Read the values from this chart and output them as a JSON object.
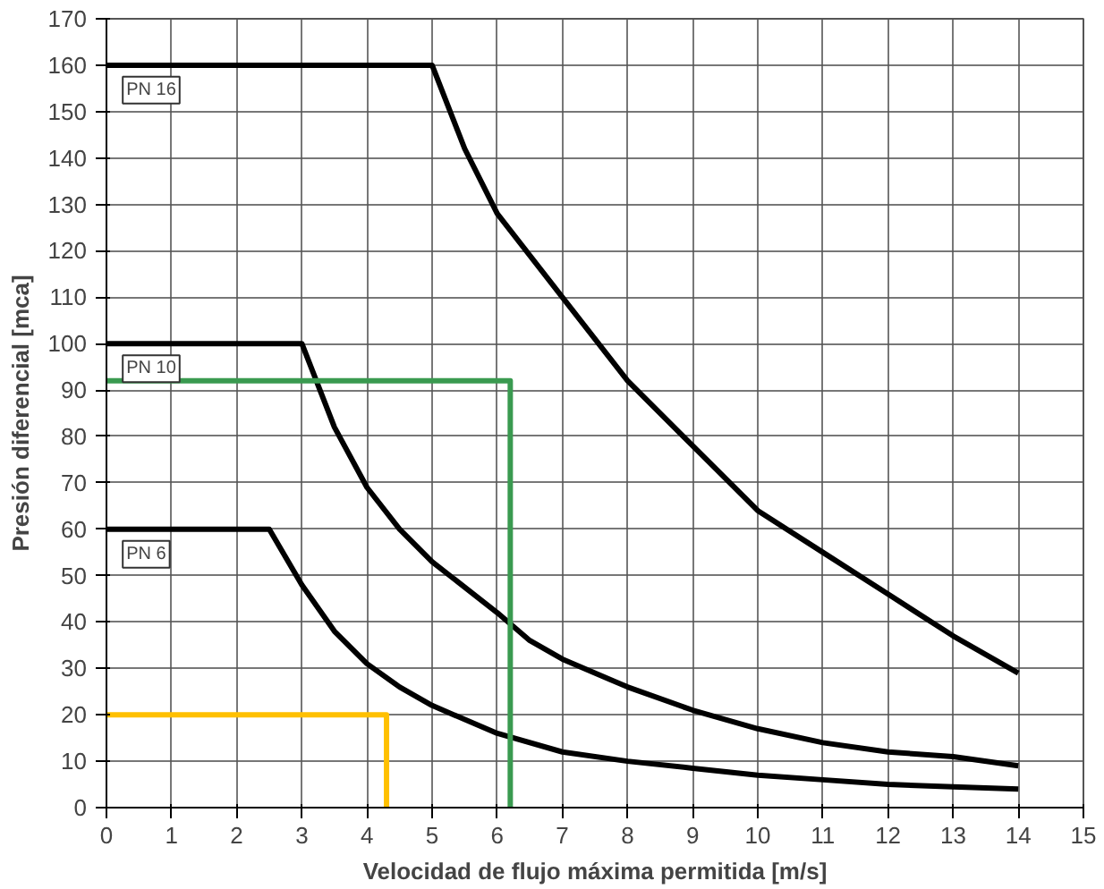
{
  "chart_data": {
    "type": "line",
    "xlabel": "Velocidad de flujo máxima permitida [m/s]",
    "ylabel": "Presión diferencial [mca]",
    "xlim": [
      0,
      15
    ],
    "ylim": [
      0,
      170
    ],
    "xticks": [
      0,
      1,
      2,
      3,
      4,
      5,
      6,
      7,
      8,
      9,
      10,
      11,
      12,
      13,
      14,
      15
    ],
    "yticks": [
      0,
      10,
      20,
      30,
      40,
      50,
      60,
      70,
      80,
      90,
      100,
      110,
      120,
      130,
      140,
      150,
      160,
      170
    ],
    "grid": true,
    "marker": "none",
    "line_style": "solid",
    "series": [
      {
        "name": "PN 16",
        "color": "#000000",
        "x": [
          0,
          5,
          5.5,
          6,
          7,
          8,
          9,
          10,
          11,
          12,
          13,
          14
        ],
        "values": [
          160,
          160,
          142,
          128,
          110,
          92,
          78,
          64,
          55,
          46,
          37,
          29
        ]
      },
      {
        "name": "PN 10",
        "color": "#000000",
        "x": [
          0,
          3,
          3.5,
          4,
          4.5,
          5,
          6,
          6.5,
          7,
          8,
          9,
          10,
          11,
          12,
          13,
          14
        ],
        "values": [
          100,
          100,
          82,
          69,
          60,
          53,
          42,
          36,
          32,
          26,
          21,
          17,
          14,
          12,
          11,
          9
        ]
      },
      {
        "name": "PN 6",
        "color": "#000000",
        "x": [
          0,
          2.5,
          3,
          3.5,
          4,
          4.5,
          5,
          6,
          7,
          8,
          9,
          10,
          11,
          12,
          13,
          14
        ],
        "values": [
          60,
          60,
          48,
          38,
          31,
          26,
          22,
          16,
          12,
          10,
          8.5,
          7,
          6,
          5,
          4.5,
          4
        ]
      },
      {
        "color": "#3a9a50",
        "x": [
          0,
          6.2,
          6.2
        ],
        "values": [
          92,
          92,
          0
        ]
      },
      {
        "color": "#ffc000",
        "x": [
          0,
          4.3,
          4.3
        ],
        "values": [
          20,
          20,
          0
        ]
      }
    ]
  }
}
